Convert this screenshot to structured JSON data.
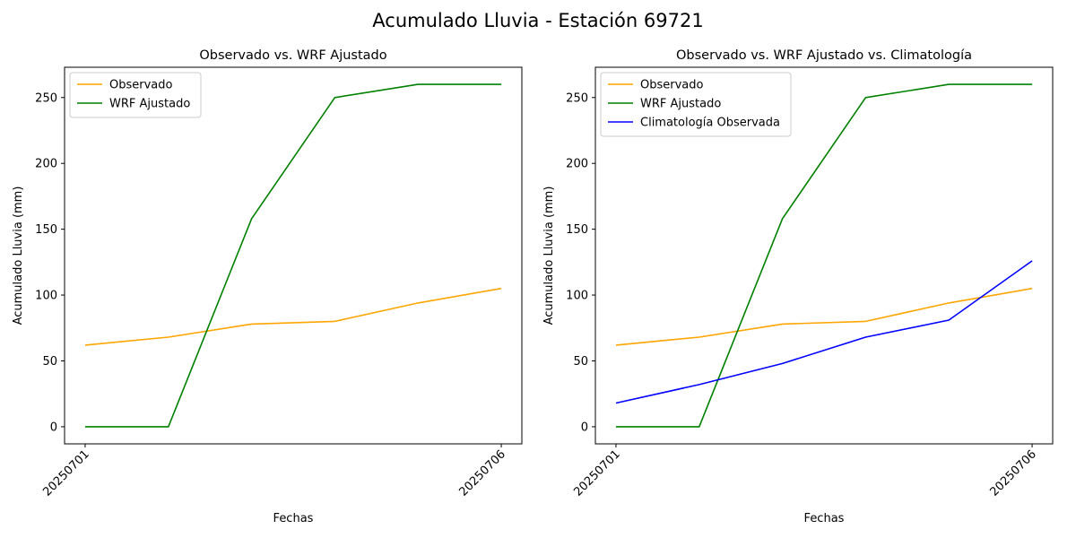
{
  "figure": {
    "suptitle": "Acumulado Lluvia - Estación 69721"
  },
  "colors": {
    "observado": "#ffa500",
    "wrf": "#008000",
    "climatologia": "#0000ff"
  },
  "chart_data": [
    {
      "type": "line",
      "title": "Observado vs. WRF Ajustado",
      "xlabel": "Fechas",
      "ylabel": "Acumulado Lluvia (mm)",
      "x": [
        "20250701",
        "20250702",
        "20250703",
        "20250704",
        "20250705",
        "20250706"
      ],
      "x_tick_labels": [
        "20250701",
        "20250706"
      ],
      "ylim": [
        -13,
        273
      ],
      "y_ticks": [
        0,
        50,
        100,
        150,
        200,
        250
      ],
      "legend_position": "top-left",
      "grid": false,
      "series": [
        {
          "name": "Observado",
          "color": "#ffa500",
          "values": [
            62,
            68,
            78,
            80,
            94,
            105
          ]
        },
        {
          "name": "WRF Ajustado",
          "color": "#008000",
          "values": [
            0,
            0,
            158,
            250,
            260,
            260
          ]
        }
      ]
    },
    {
      "type": "line",
      "title": "Observado vs. WRF Ajustado vs. Climatología",
      "xlabel": "Fechas",
      "ylabel": "Acumulado Lluvia (mm)",
      "x": [
        "20250701",
        "20250702",
        "20250703",
        "20250704",
        "20250705",
        "20250706"
      ],
      "x_tick_labels": [
        "20250701",
        "20250706"
      ],
      "ylim": [
        -13,
        273
      ],
      "y_ticks": [
        0,
        50,
        100,
        150,
        200,
        250
      ],
      "legend_position": "top-left",
      "grid": false,
      "series": [
        {
          "name": "Observado",
          "color": "#ffa500",
          "values": [
            62,
            68,
            78,
            80,
            94,
            105
          ]
        },
        {
          "name": "WRF Ajustado",
          "color": "#008000",
          "values": [
            0,
            0,
            158,
            250,
            260,
            260
          ]
        },
        {
          "name": "Climatología Observada",
          "color": "#0000ff",
          "values": [
            18,
            32,
            48,
            68,
            81,
            126
          ]
        }
      ]
    }
  ]
}
